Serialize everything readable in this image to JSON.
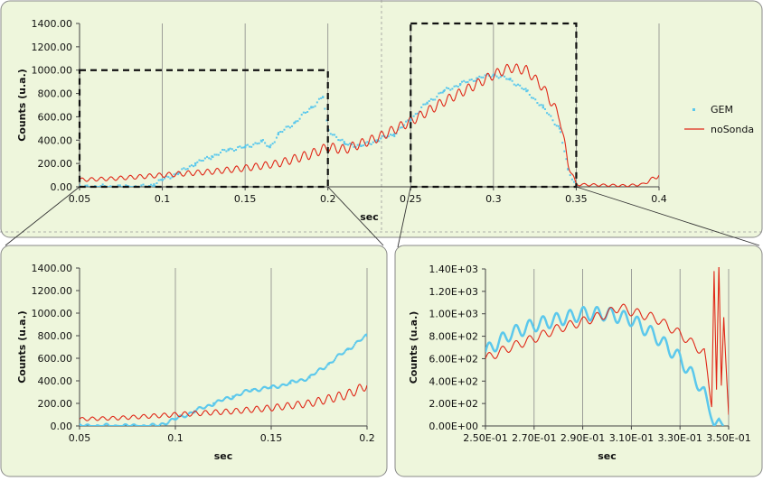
{
  "chart_data": [
    {
      "type": "scatter",
      "xlabel": "sec",
      "ylabel": "Counts (u.a.)",
      "xlim": [
        0.05,
        0.4
      ],
      "ylim": [
        0,
        1400
      ],
      "xticks": [
        "0.05",
        "0.1",
        "0.15",
        "0.2",
        "0.25",
        "0.3",
        "0.35",
        "0.4"
      ],
      "yticks": [
        "0.00",
        "200.00",
        "400.00",
        "600.00",
        "800.00",
        "1000.00",
        "1200.00",
        "1400.00"
      ],
      "legend_position": "right",
      "grid": "vertical",
      "series": [
        {
          "name": "GEM",
          "style": "markers",
          "color": "#5bc8ec",
          "x": [
            0.05,
            0.06,
            0.07,
            0.08,
            0.09,
            0.095,
            0.1,
            0.11,
            0.12,
            0.13,
            0.14,
            0.15,
            0.16,
            0.165,
            0.17,
            0.18,
            0.19,
            0.197,
            0.2,
            0.21,
            0.22,
            0.23,
            0.24,
            0.25,
            0.26,
            0.27,
            0.28,
            0.29,
            0.3,
            0.31,
            0.32,
            0.33,
            0.34,
            0.345,
            0.35
          ],
          "y": [
            0,
            0,
            0,
            0,
            0,
            20,
            60,
            120,
            200,
            260,
            320,
            340,
            390,
            340,
            450,
            550,
            680,
            770,
            490,
            370,
            350,
            400,
            450,
            580,
            720,
            820,
            880,
            930,
            960,
            920,
            820,
            680,
            500,
            150,
            0
          ]
        },
        {
          "name": "noSonda",
          "style": "line",
          "color": "#e02818",
          "x": [
            0.05,
            0.07,
            0.09,
            0.11,
            0.13,
            0.15,
            0.17,
            0.19,
            0.2,
            0.21,
            0.23,
            0.25,
            0.27,
            0.29,
            0.3,
            0.31,
            0.32,
            0.33,
            0.34,
            0.345,
            0.35,
            0.38,
            0.39,
            0.4
          ],
          "y": [
            60,
            70,
            90,
            110,
            130,
            160,
            200,
            280,
            340,
            320,
            420,
            560,
            730,
            880,
            960,
            1020,
            1000,
            850,
            600,
            200,
            20,
            10,
            20,
            100
          ]
        }
      ]
    },
    {
      "type": "scatter",
      "xlabel": "sec",
      "ylabel": "Counts (u.a.)",
      "xlim": [
        0.05,
        0.2
      ],
      "ylim": [
        0,
        1400
      ],
      "xticks": [
        "0.05",
        "0.1",
        "0.15",
        "0.2"
      ],
      "yticks": [
        "0.00",
        "200.00",
        "400.00",
        "600.00",
        "800.00",
        "1000.00",
        "1200.00",
        "1400.00"
      ],
      "grid": "vertical",
      "series": [
        {
          "name": "GEM",
          "style": "markers",
          "color": "#5bc8ec",
          "x": [
            0.05,
            0.06,
            0.07,
            0.08,
            0.09,
            0.1,
            0.11,
            0.12,
            0.13,
            0.14,
            0.15,
            0.16,
            0.17,
            0.18,
            0.19,
            0.2
          ],
          "y": [
            0,
            0,
            0,
            0,
            0,
            60,
            130,
            200,
            260,
            320,
            340,
            380,
            430,
            550,
            680,
            800
          ]
        },
        {
          "name": "noSonda",
          "style": "line",
          "color": "#e02818",
          "x": [
            0.05,
            0.07,
            0.09,
            0.11,
            0.13,
            0.15,
            0.17,
            0.19,
            0.2
          ],
          "y": [
            60,
            70,
            90,
            110,
            130,
            160,
            200,
            280,
            360
          ]
        }
      ]
    },
    {
      "type": "line",
      "xlabel": "sec",
      "ylabel": "Counts (u.a.)",
      "xlim": [
        0.25,
        0.35
      ],
      "ylim": [
        0,
        1400
      ],
      "xticks": [
        "2.50E-01",
        "2.70E-01",
        "2.90E-01",
        "3.10E-01",
        "3.30E-01",
        "3.50E-01"
      ],
      "yticks": [
        "0.00E+00",
        "2.00E+02",
        "4.00E+02",
        "6.00E+02",
        "8.00E+02",
        "1.00E+03",
        "1.20E+03",
        "1.40E+03"
      ],
      "grid": "vertical",
      "series": [
        {
          "name": "GEM",
          "style": "line",
          "color": "#5bc8ec",
          "x": [
            0.25,
            0.26,
            0.27,
            0.28,
            0.29,
            0.3,
            0.31,
            0.32,
            0.33,
            0.34,
            0.344,
            0.346,
            0.348
          ],
          "y": [
            660,
            820,
            900,
            950,
            1000,
            1000,
            950,
            800,
            600,
            300,
            0,
            50,
            0
          ]
        },
        {
          "name": "noSonda",
          "style": "line",
          "color": "#e02818",
          "x": [
            0.25,
            0.26,
            0.27,
            0.28,
            0.29,
            0.3,
            0.305,
            0.31,
            0.32,
            0.33,
            0.34,
            0.343,
            0.344,
            0.345,
            0.346,
            0.347,
            0.348,
            0.35
          ],
          "y": [
            600,
            700,
            780,
            870,
            930,
            1000,
            1060,
            1020,
            960,
            820,
            650,
            200,
            1400,
            300,
            1400,
            350,
            1000,
            100
          ]
        }
      ]
    }
  ]
}
